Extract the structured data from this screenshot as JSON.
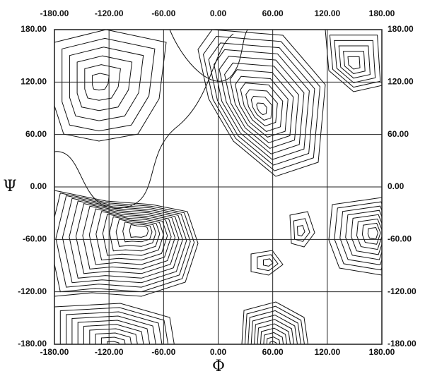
{
  "chart_data": {
    "type": "contour",
    "x_label": "Φ",
    "y_label": "Ψ",
    "xlim": [
      -180,
      180
    ],
    "ylim": [
      -180,
      180
    ],
    "xticks": [
      {
        "value": -180,
        "label": "-180.00"
      },
      {
        "value": -120,
        "label": "-120.00"
      },
      {
        "value": -60,
        "label": "-60.00"
      },
      {
        "value": 0,
        "label": "0.00"
      },
      {
        "value": 60,
        "label": "60.00"
      },
      {
        "value": 120,
        "label": "120.00"
      },
      {
        "value": 180,
        "label": "180.00"
      }
    ],
    "yticks": [
      {
        "value": -180,
        "label": "-180.00"
      },
      {
        "value": -120,
        "label": "-120.00"
      },
      {
        "value": -60,
        "label": "-60.00"
      },
      {
        "value": 0,
        "label": "0.00"
      },
      {
        "value": 60,
        "label": "60.00"
      },
      {
        "value": 120,
        "label": "120.00"
      },
      {
        "value": 180,
        "label": "180.00"
      }
    ],
    "grid": true
  }
}
